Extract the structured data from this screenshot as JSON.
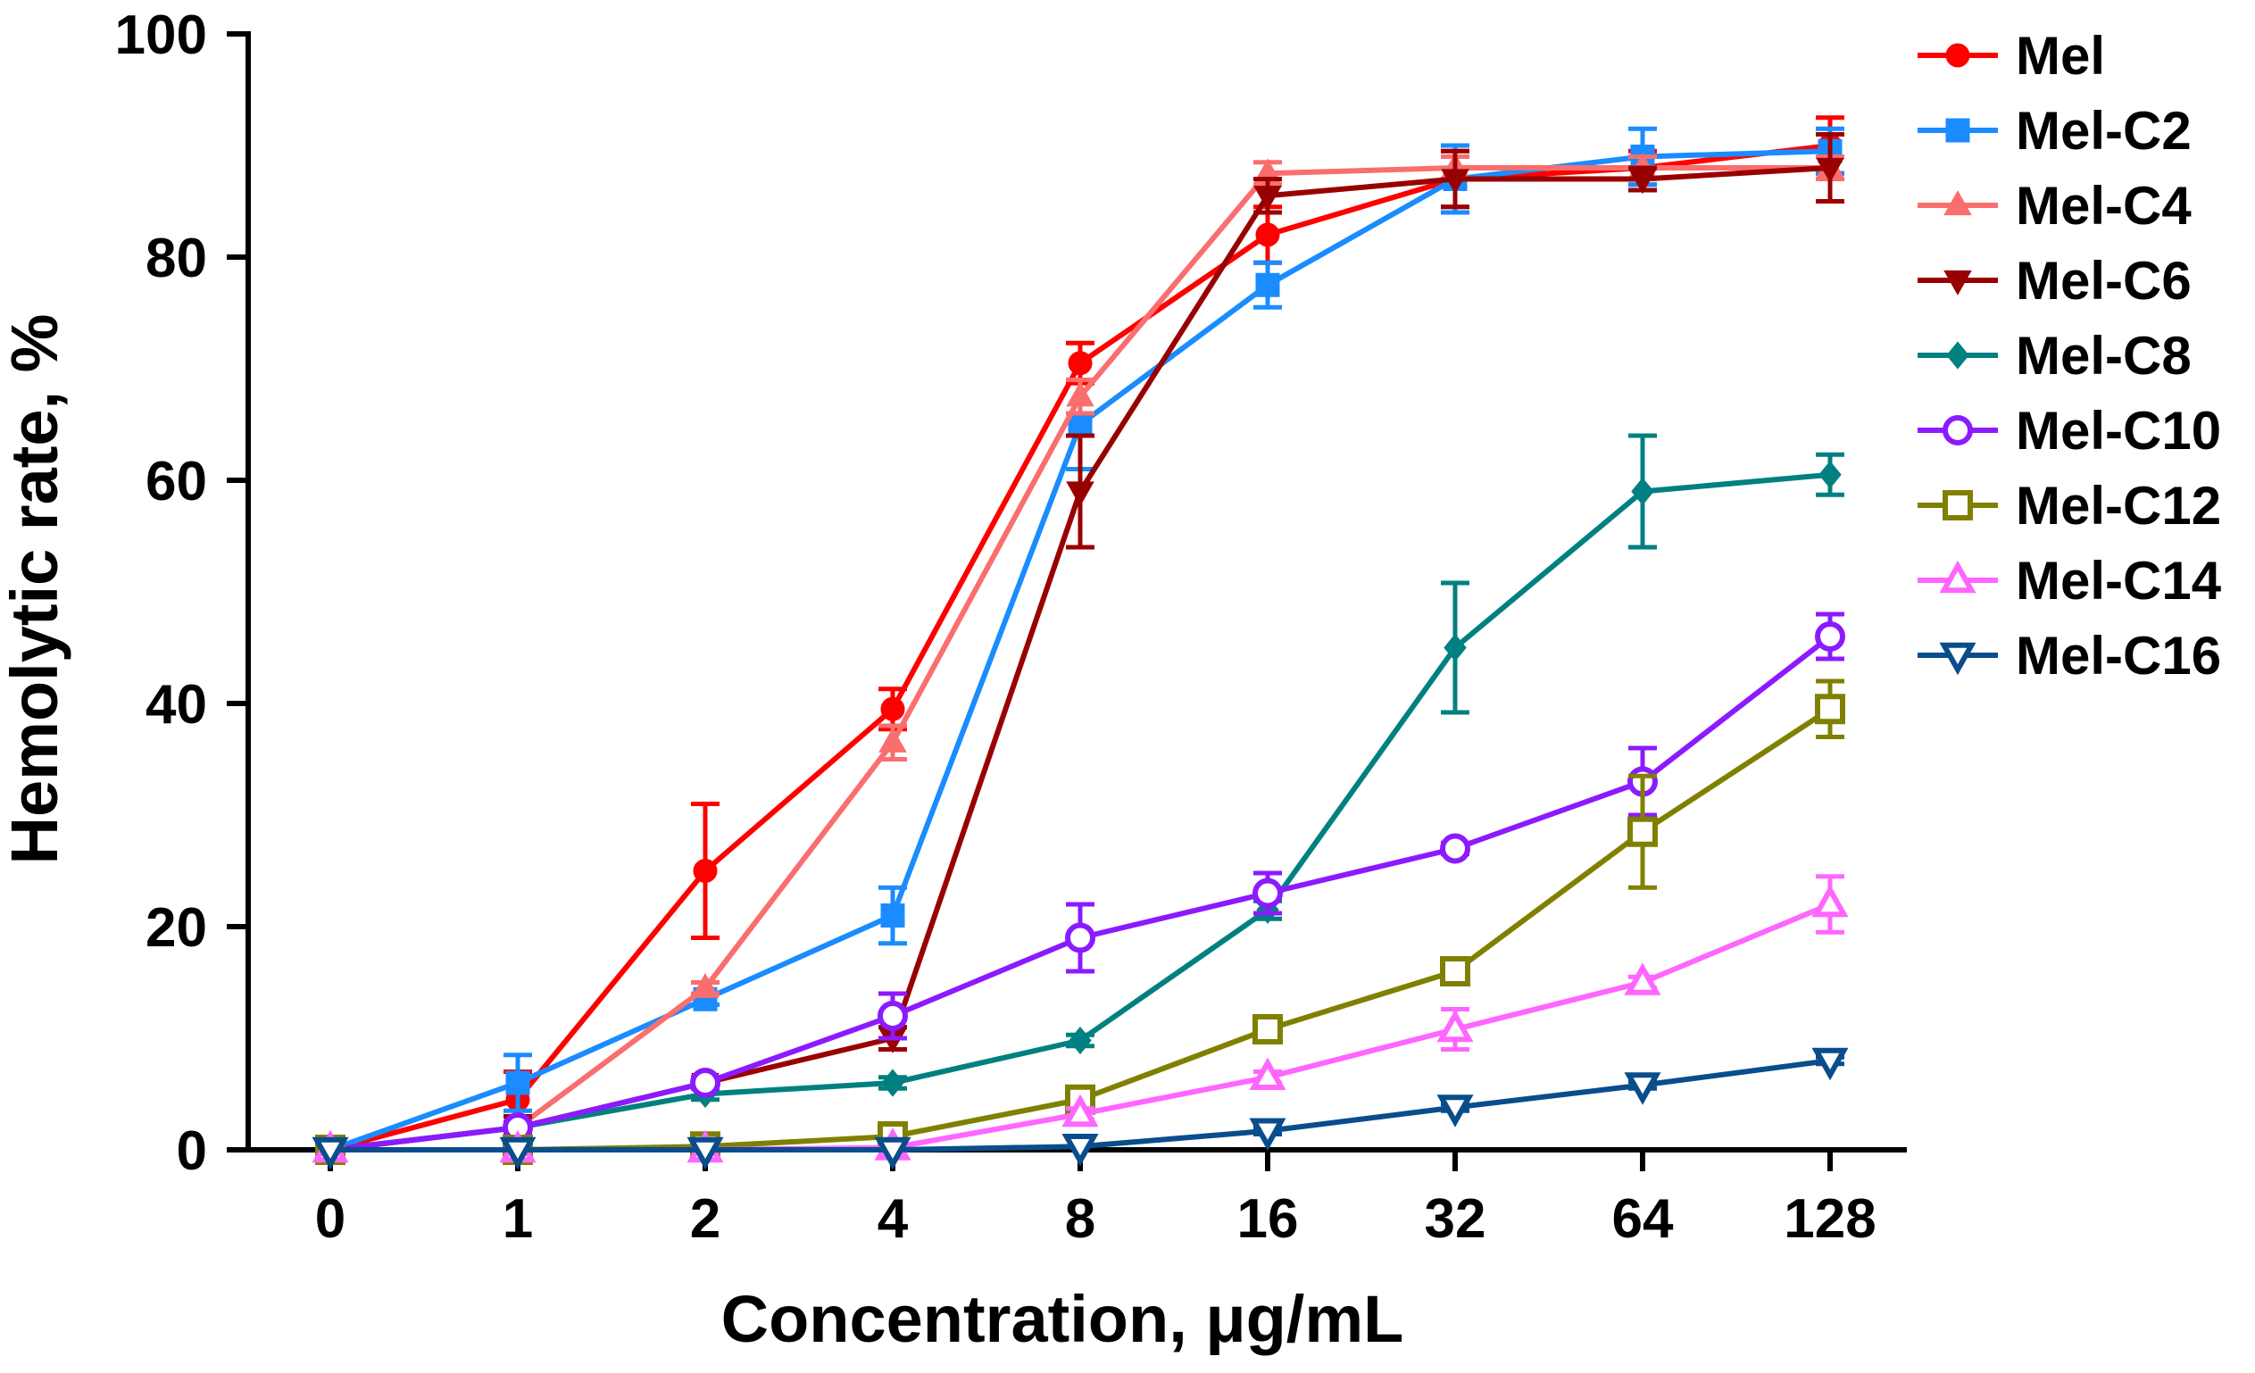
{
  "chart_data": {
    "type": "line",
    "title": "",
    "xlabel": "Concentration, μg/mL",
    "ylabel": "Hemolytic rate, %",
    "categories": [
      "0",
      "1",
      "2",
      "4",
      "8",
      "16",
      "32",
      "64",
      "128"
    ],
    "ylim": [
      0,
      100
    ],
    "yticks": [
      "0",
      "20",
      "40",
      "60",
      "80",
      "100"
    ],
    "grid": false,
    "legend_position": "right",
    "series": [
      {
        "name": "Mel",
        "color": "#ff0000",
        "marker": "circle",
        "filled": true,
        "values": [
          0,
          4.5,
          25,
          39.5,
          70.5,
          82,
          87,
          88,
          90
        ],
        "errors": [
          0,
          2.5,
          6,
          1.8,
          1.8,
          2.5,
          2.5,
          1.5,
          2.5
        ]
      },
      {
        "name": "Mel-C2",
        "color": "#1a8cff",
        "marker": "square",
        "filled": true,
        "values": [
          0,
          6,
          13.5,
          21,
          65,
          77.5,
          87,
          89,
          89.5
        ],
        "errors": [
          0,
          2.5,
          0.5,
          2.5,
          4,
          2,
          3,
          2.5,
          2
        ]
      },
      {
        "name": "Mel-C4",
        "color": "#fa6e6e",
        "marker": "triangle-up",
        "filled": true,
        "values": [
          0,
          2,
          14.5,
          36.5,
          67.5,
          87.5,
          88,
          88,
          88
        ],
        "errors": [
          0,
          1,
          0.5,
          1.5,
          1.5,
          1,
          1,
          1,
          1
        ]
      },
      {
        "name": "Mel-C6",
        "color": "#990000",
        "marker": "triangle-down",
        "filled": true,
        "values": [
          0,
          2,
          6,
          10,
          59,
          85.5,
          87,
          87,
          88
        ],
        "errors": [
          0,
          1,
          0.5,
          1,
          5,
          1.5,
          2.5,
          1,
          3
        ]
      },
      {
        "name": "Mel-C8",
        "color": "#008080",
        "marker": "diamond",
        "filled": true,
        "values": [
          0,
          2,
          5,
          6,
          9.8,
          21.5,
          45,
          59,
          60.5
        ],
        "errors": [
          0,
          0.5,
          0.5,
          0.5,
          0.5,
          0.8,
          5.8,
          5,
          1.8
        ]
      },
      {
        "name": "Mel-C10",
        "color": "#8c1aff",
        "marker": "circle",
        "filled": false,
        "values": [
          0,
          2,
          6,
          12,
          19,
          23,
          27,
          33,
          46
        ],
        "errors": [
          0,
          0.5,
          0.5,
          2,
          3,
          1.8,
          0.5,
          3,
          2
        ]
      },
      {
        "name": "Mel-C12",
        "color": "#808000",
        "marker": "square",
        "filled": false,
        "values": [
          0,
          0,
          0.3,
          1.2,
          4.5,
          10.8,
          16,
          28.5,
          39.5
        ],
        "errors": [
          0,
          0,
          0,
          0,
          0.5,
          0.5,
          0.5,
          5,
          2.5
        ]
      },
      {
        "name": "Mel-C14",
        "color": "#ff66ff",
        "marker": "triangle-up",
        "filled": false,
        "values": [
          0,
          0,
          0,
          0.2,
          3.2,
          6.5,
          10.8,
          15,
          22
        ],
        "errors": [
          0,
          0,
          0,
          0,
          0.5,
          0.5,
          1.8,
          0.5,
          2.5
        ]
      },
      {
        "name": "Mel-C16",
        "color": "#0a4d8c",
        "marker": "triangle-down",
        "filled": false,
        "values": [
          0,
          0,
          0,
          0,
          0.3,
          1.7,
          3.8,
          5.8,
          8
        ],
        "errors": [
          0,
          0,
          0,
          0,
          0,
          0.3,
          0.3,
          0.3,
          0.3
        ]
      }
    ]
  }
}
